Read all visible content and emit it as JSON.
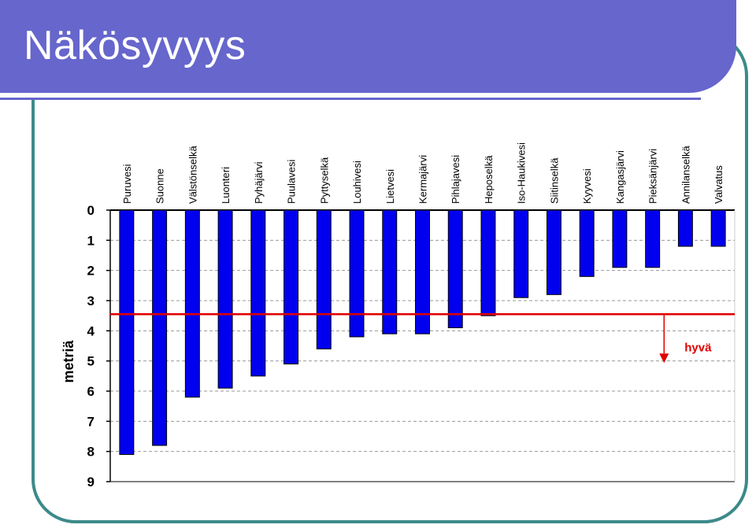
{
  "slide": {
    "title": "Näkösyvyys"
  },
  "chart_data": {
    "type": "bar",
    "orientation": "vertical-downward",
    "categories": [
      "Puruvesi",
      "Suonne",
      "Välstönselkä",
      "Luonteri",
      "Pyhäjärvi",
      "Puulavesi",
      "Pyttyselkä",
      "Louhivesi",
      "Lietvesi",
      "Kermajärvi",
      "Pihlajavesi",
      "Heposelkä",
      "Iso-Haukivesi",
      "Siitinselkä",
      "Kyyvesi",
      "Kangasjärvi",
      "Pieksänjärvi",
      "Annilanselkä",
      "Valvatus"
    ],
    "values": [
      8.1,
      7.8,
      6.2,
      5.9,
      5.5,
      5.1,
      4.6,
      4.2,
      4.1,
      4.1,
      3.9,
      3.5,
      2.9,
      2.8,
      2.2,
      1.9,
      1.9,
      1.2,
      1.2
    ],
    "ylabel": "metriä",
    "ylim": [
      0,
      9
    ],
    "yticks": [
      0,
      1,
      2,
      3,
      4,
      5,
      6,
      7,
      8,
      9
    ],
    "reference_line": {
      "value": 3.45,
      "label": "hyvä",
      "color": "#e00000"
    },
    "bar_color": "#0000ee",
    "grid": true
  }
}
